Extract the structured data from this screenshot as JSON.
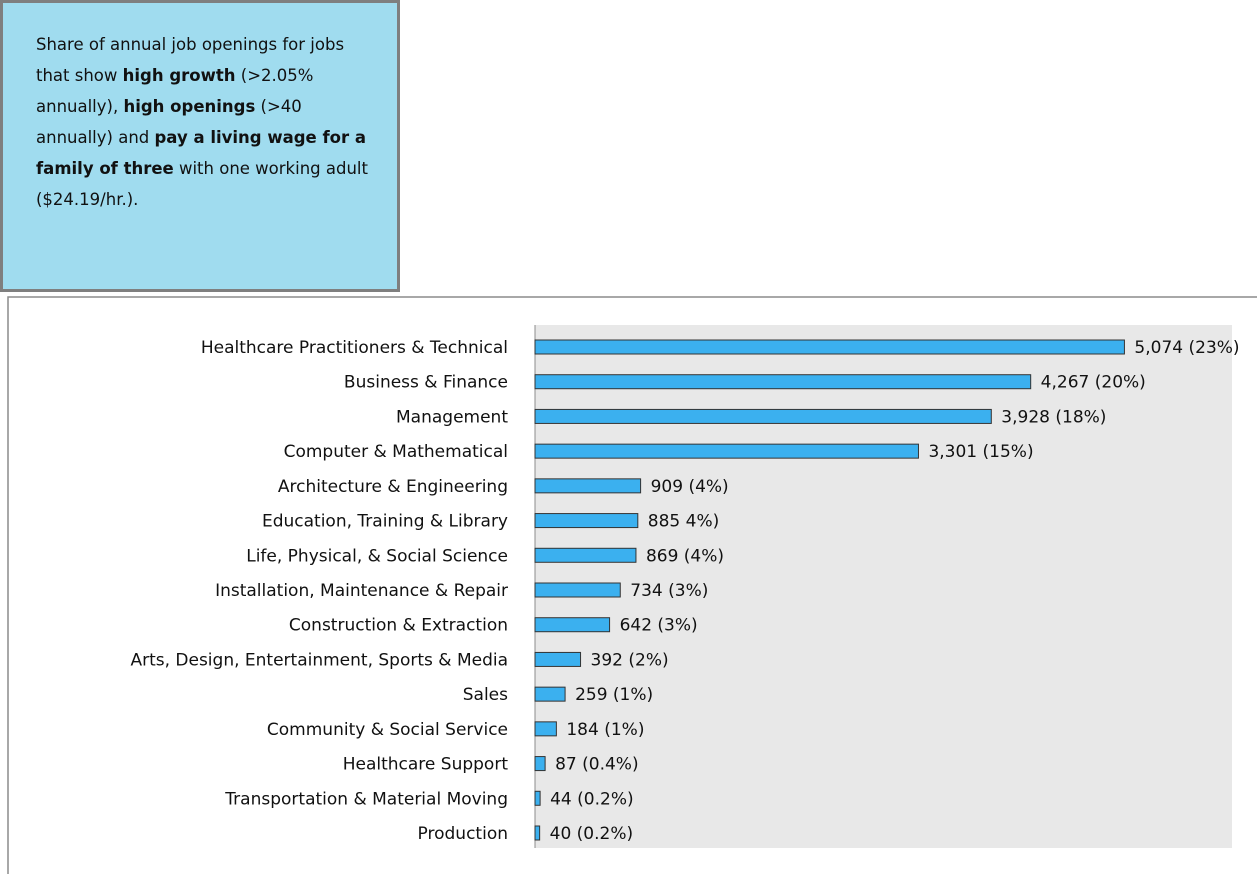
{
  "chart_data": {
    "type": "bar",
    "orientation": "horizontal",
    "note": [
      {
        "text": "Share of annual job openings for jobs that show ",
        "bold": false
      },
      {
        "text": "high growth",
        "bold": true
      },
      {
        "text": " (>2.05% annually), ",
        "bold": false
      },
      {
        "text": "high openings",
        "bold": true
      },
      {
        "text": " (>40 annually) and ",
        "bold": false
      },
      {
        "text": "pay a living wage for a family of three",
        "bold": true
      },
      {
        "text": " with one working adult ($24.19/hr.).",
        "bold": false
      }
    ],
    "categories": [
      "Healthcare Practitioners & Technical",
      "Business & Finance",
      "Management",
      "Computer & Mathematical",
      "Architecture & Engineering",
      "Education, Training & Library",
      "Life, Physical, & Social Science",
      "Installation, Maintenance & Repair",
      "Construction & Extraction",
      "Arts, Design, Entertainment, Sports & Media",
      "Sales",
      "Community & Social Service",
      "Healthcare Support",
      "Transportation & Material Moving",
      "Production"
    ],
    "values": [
      5074,
      4267,
      3928,
      3301,
      909,
      885,
      869,
      734,
      642,
      392,
      259,
      184,
      87,
      44,
      40
    ],
    "value_labels": [
      "5,074 (23%)",
      "4,267 (20%)",
      "3,928 (18%)",
      "3,301 (15%)",
      "909 (4%)",
      "885 4%)",
      "869 (4%)",
      "734 (3%)",
      "642 (3%)",
      "392 (2%)",
      "259 (1%)",
      "184 (1%)",
      "87 (0.4%)",
      "44 (0.2%)",
      "40 (0.2%)"
    ],
    "color": "#3bb0ef",
    "xlim": [
      0,
      6000
    ]
  }
}
